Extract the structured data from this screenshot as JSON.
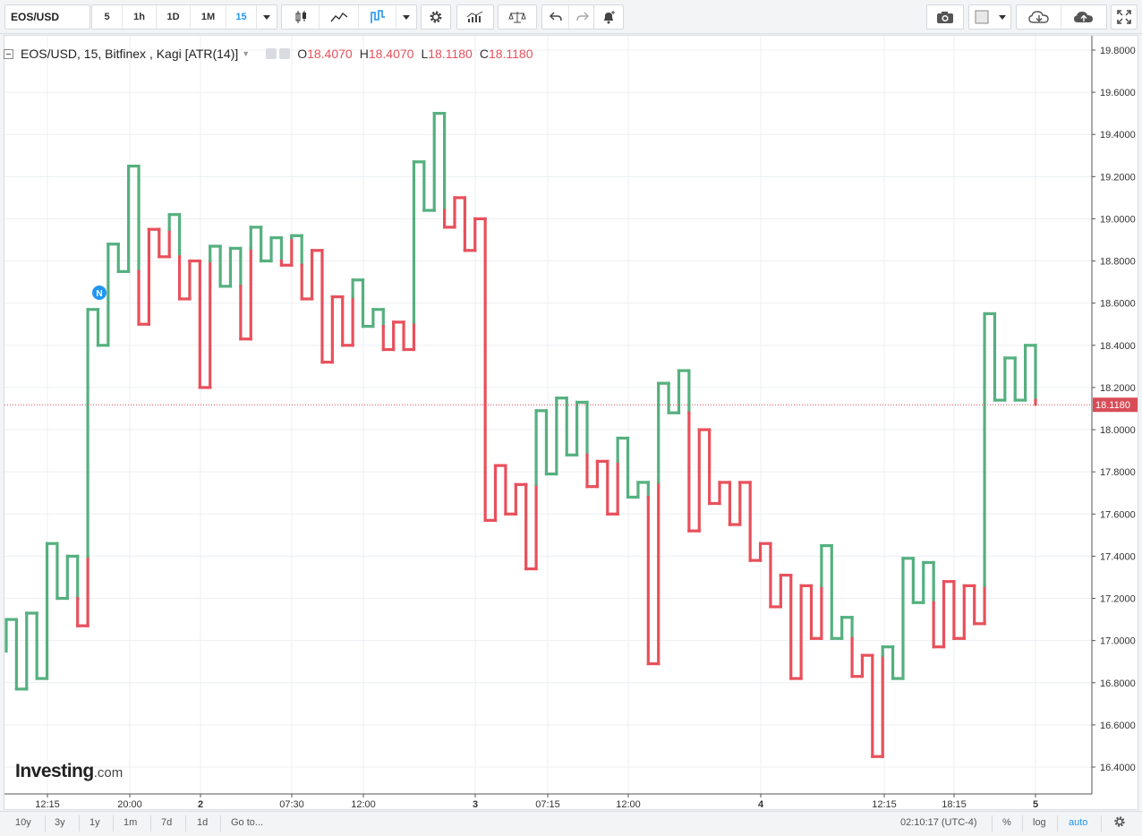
{
  "toolbar": {
    "symbol": "EOS/USD",
    "intervals": [
      "5",
      "1h",
      "1D",
      "1M",
      "15"
    ],
    "active_interval": "15",
    "icons": [
      "candles-icon",
      "line-chart-icon",
      "kagi-chart-icon",
      "settings-gear-icon",
      "indicators-icon",
      "compare-scale-icon",
      "undo-icon",
      "redo-icon",
      "alert-bell-icon",
      "camera-icon",
      "color-square-icon",
      "cloud-download-icon",
      "cloud-upload-icon",
      "fullscreen-icon"
    ]
  },
  "legend": {
    "title": "EOS/USD, 15, Bitfinex , Kagi [ATR(14)]",
    "open_label": "O",
    "open": "18.4070",
    "high_label": "H",
    "high": "18.4070",
    "low_label": "L",
    "low": "18.1180",
    "close_label": "C",
    "close": "18.1180"
  },
  "chart_data": {
    "type": "line",
    "style": "kagi",
    "x_tick_labels": [
      "12:15",
      "20:00",
      "2",
      "07:30",
      "12:00",
      "3",
      "07:15",
      "12:00",
      "4",
      "12:15",
      "18:15",
      "5"
    ],
    "y_tick_labels": [
      "16.4000",
      "16.6000",
      "16.8000",
      "17.0000",
      "17.2000",
      "17.4000",
      "17.6000",
      "17.8000",
      "18.0000",
      "18.2000",
      "18.4000",
      "18.6000",
      "18.8000",
      "19.0000",
      "19.2000",
      "19.4000",
      "19.6000",
      "19.8000"
    ],
    "ylim": [
      16.3,
      19.85
    ],
    "last_price": "18.1180",
    "kagi_reversals": [
      16.95,
      17.1,
      16.77,
      17.13,
      16.82,
      17.46,
      17.2,
      17.4,
      17.07,
      18.57,
      18.4,
      18.88,
      18.75,
      19.25,
      18.5,
      18.95,
      18.82,
      19.02,
      18.62,
      18.8,
      18.2,
      18.87,
      18.68,
      18.86,
      18.43,
      18.96,
      18.8,
      18.91,
      18.78,
      18.92,
      18.62,
      18.85,
      18.32,
      18.63,
      18.4,
      18.71,
      18.49,
      18.57,
      18.38,
      18.51,
      18.38,
      19.27,
      19.04,
      19.5,
      18.96,
      19.1,
      18.85,
      19.0,
      17.57,
      17.83,
      17.6,
      17.74,
      17.34,
      18.09,
      17.79,
      18.15,
      17.88,
      18.13,
      17.73,
      17.85,
      17.6,
      17.96,
      17.68,
      17.75,
      16.89,
      18.22,
      18.08,
      18.28,
      17.52,
      18.0,
      17.65,
      17.75,
      17.55,
      17.75,
      17.38,
      17.46,
      17.16,
      17.31,
      16.82,
      17.26,
      17.01,
      17.45,
      17.01,
      17.11,
      16.83,
      16.93,
      16.45,
      16.97,
      16.82,
      17.39,
      17.18,
      17.37,
      16.97,
      17.28,
      17.01,
      17.26,
      17.08,
      18.55,
      18.14,
      18.34,
      18.14,
      18.4,
      18.12
    ],
    "colors": {
      "up": "#55b07f",
      "down": "#e8505b",
      "grid": "#eceff2",
      "price_line": "#d94d57"
    }
  },
  "watermark": {
    "brand": "Investing",
    "suffix": ".com"
  },
  "news_marker": "N",
  "bottom": {
    "ranges": [
      "10y",
      "3y",
      "1y",
      "1m",
      "7d",
      "1d"
    ],
    "goto": "Go to...",
    "clock": "02:10:17 (UTC-4)",
    "percent": "%",
    "log": "log",
    "auto": "auto"
  }
}
